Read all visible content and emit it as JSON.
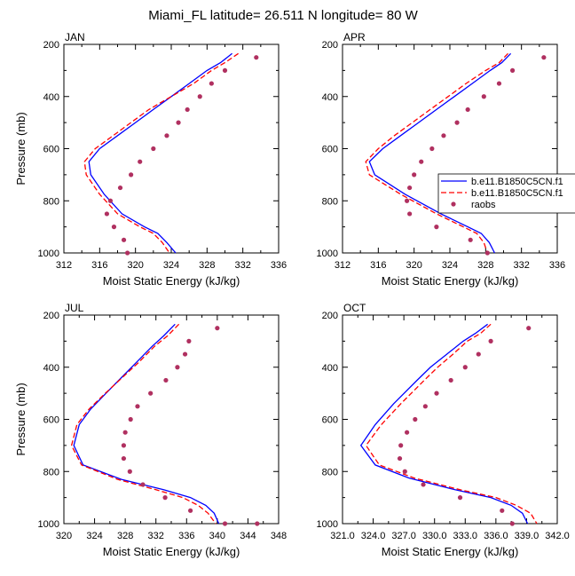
{
  "title": "Miami_FL  latitude= 26.511 N longitude= 80 W",
  "colors": {
    "model1": "#0000ff",
    "model2": "#ff0000",
    "raobs": "#b03060"
  },
  "legend": [
    "b.e11.B1850C5CN.f1",
    "b.e11.B1850C5CN.f1",
    "raobs"
  ],
  "chart_data": [
    {
      "type": "line",
      "panel": "JAN",
      "xlabel": "Moist Static Energy (kJ/kg)",
      "ylabel": "Pressure (mb)",
      "xlim": [
        312,
        336
      ],
      "ylim": [
        1000,
        200
      ],
      "y_axis": "inverted",
      "xticks": [
        "312",
        "316",
        "320",
        "324",
        "328",
        "332",
        "336"
      ],
      "yticks": [
        "200",
        "400",
        "600",
        "800",
        "1000"
      ],
      "series": [
        {
          "name": "b.e11.B1850C5CN.f1",
          "style": "solid",
          "x": [
            330.8,
            329.5,
            328,
            326,
            324,
            322,
            320,
            318,
            316,
            314.8,
            315,
            316.5,
            318.5,
            321,
            322.5,
            323.5,
            324.5
          ],
          "y": [
            235,
            270,
            300,
            350,
            400,
            450,
            500,
            550,
            600,
            650,
            700,
            775,
            850,
            900,
            925,
            960,
            1000
          ]
        },
        {
          "name": "b.e11.B1850C5CN.f1",
          "style": "dashed",
          "x": [
            331.5,
            330,
            328.5,
            326.5,
            324,
            321.5,
            319.5,
            317.5,
            315.5,
            314.3,
            314.5,
            316,
            318,
            320.5,
            322,
            323,
            323.8
          ],
          "y": [
            235,
            270,
            300,
            350,
            400,
            450,
            500,
            550,
            600,
            650,
            700,
            775,
            850,
            900,
            925,
            960,
            1000
          ]
        },
        {
          "name": "raobs",
          "style": "markers",
          "x": [
            333.5,
            330,
            328.5,
            327.2,
            325.8,
            324.8,
            323.5,
            322,
            320.5,
            319.5,
            318.3,
            317.2,
            316.8,
            317.6,
            318.7,
            319.1
          ],
          "y": [
            250,
            300,
            350,
            400,
            450,
            500,
            550,
            600,
            650,
            700,
            750,
            800,
            850,
            900,
            950,
            1000
          ]
        }
      ]
    },
    {
      "type": "line",
      "panel": "APR",
      "xlabel": "Moist Static Energy (kJ/kg)",
      "ylabel": "",
      "xlim": [
        312,
        336
      ],
      "ylim": [
        1000,
        200
      ],
      "y_axis": "inverted",
      "xticks": [
        "312",
        "316",
        "320",
        "324",
        "328",
        "332",
        "336"
      ],
      "yticks": [
        "200",
        "400",
        "600",
        "800",
        "1000"
      ],
      "series": [
        {
          "name": "b.e11.B1850C5CN.f1",
          "style": "solid",
          "x": [
            330.8,
            329.8,
            328.5,
            326.5,
            324.5,
            322.5,
            320.5,
            318.5,
            316.5,
            315,
            315.6,
            319,
            323,
            326,
            327.5,
            328.4,
            329
          ],
          "y": [
            235,
            270,
            300,
            350,
            400,
            450,
            500,
            550,
            600,
            650,
            700,
            775,
            850,
            900,
            925,
            960,
            1000
          ]
        },
        {
          "name": "b.e11.B1850C5CN.f1",
          "style": "dashed",
          "x": [
            330.5,
            329.5,
            328,
            325.8,
            323.8,
            321.8,
            319.8,
            317.8,
            316,
            314.6,
            315,
            318.5,
            322.5,
            325.5,
            327,
            327.8,
            328.2
          ],
          "y": [
            235,
            270,
            300,
            350,
            400,
            450,
            500,
            550,
            600,
            650,
            700,
            775,
            850,
            900,
            925,
            960,
            1000
          ]
        },
        {
          "name": "raobs",
          "style": "markers",
          "x": [
            334.5,
            331,
            329.5,
            327.8,
            326,
            324.8,
            323.3,
            322,
            320.8,
            320,
            319.5,
            319.2,
            319.5,
            322.5,
            326.3,
            328.2
          ],
          "y": [
            250,
            300,
            350,
            400,
            450,
            500,
            550,
            600,
            650,
            700,
            750,
            800,
            850,
            900,
            950,
            1000
          ]
        }
      ]
    },
    {
      "type": "line",
      "panel": "JUL",
      "xlabel": "Moist Static Energy (kJ/kg)",
      "ylabel": "Pressure (mb)",
      "xlim": [
        320,
        348
      ],
      "ylim": [
        1000,
        200
      ],
      "y_axis": "inverted",
      "xticks": [
        "320",
        "324",
        "328",
        "332",
        "336",
        "340",
        "344",
        "348"
      ],
      "yticks": [
        "200",
        "400",
        "600",
        "800",
        "1000"
      ],
      "series": [
        {
          "name": "b.e11.B1850C5CN.f1",
          "style": "solid",
          "x": [
            334.5,
            333,
            331.5,
            329.5,
            327.5,
            325.5,
            323.5,
            322,
            321.3,
            322.5,
            327.5,
            333,
            336.5,
            338.5,
            339.6,
            340.2
          ],
          "y": [
            235,
            280,
            320,
            380,
            440,
            500,
            560,
            620,
            700,
            775,
            830,
            870,
            900,
            930,
            960,
            1000
          ]
        },
        {
          "name": "b.e11.B1850C5CN.f1",
          "style": "dashed",
          "x": [
            335,
            333.5,
            331.8,
            329.8,
            327.6,
            325.4,
            323.3,
            321.7,
            321,
            322.3,
            327,
            332,
            335.5,
            337.5,
            338.8,
            339.8
          ],
          "y": [
            235,
            280,
            320,
            380,
            440,
            500,
            560,
            620,
            700,
            775,
            830,
            870,
            900,
            930,
            960,
            1000
          ]
        },
        {
          "name": "raobs",
          "style": "markers",
          "x": [
            340,
            336.3,
            335.8,
            334.8,
            333.3,
            331.3,
            329.6,
            328.7,
            328,
            327.8,
            327.8,
            328.6,
            330.3,
            333.2,
            336.5,
            341,
            345.2
          ],
          "y": [
            250,
            300,
            350,
            400,
            450,
            500,
            550,
            600,
            650,
            700,
            750,
            800,
            850,
            900,
            950,
            1000,
            1000
          ]
        }
      ]
    },
    {
      "type": "line",
      "panel": "OCT",
      "xlabel": "Moist Static Energy (kJ/kg)",
      "ylabel": "",
      "xlim": [
        321,
        342
      ],
      "ylim": [
        1000,
        200
      ],
      "y_axis": "inverted",
      "xticks": [
        "321.0",
        "324.0",
        "327.0",
        "330.0",
        "333.0",
        "336.0",
        "339.0",
        "342.0"
      ],
      "yticks": [
        "200",
        "400",
        "600",
        "800",
        "1000"
      ],
      "series": [
        {
          "name": "b.e11.B1850C5CN.f1",
          "style": "solid",
          "x": [
            335.2,
            334,
            332.8,
            331.2,
            329.6,
            328.3,
            326,
            324.2,
            322.8,
            324.2,
            327.5,
            332,
            335.5,
            337.5,
            338.6,
            339.1
          ],
          "y": [
            235,
            270,
            300,
            350,
            400,
            450,
            540,
            620,
            700,
            775,
            825,
            870,
            900,
            930,
            960,
            1000
          ]
        },
        {
          "name": "b.e11.B1850C5CN.f1",
          "style": "dashed",
          "x": [
            335.5,
            334.5,
            333.2,
            331.8,
            330.3,
            329,
            326.7,
            324.8,
            323.3,
            324.6,
            328,
            332.5,
            336,
            338,
            339.4,
            340
          ],
          "y": [
            235,
            270,
            300,
            350,
            400,
            450,
            540,
            620,
            700,
            775,
            825,
            870,
            900,
            930,
            960,
            1000
          ]
        },
        {
          "name": "raobs",
          "style": "markers",
          "x": [
            339.2,
            335.5,
            334.3,
            333,
            331.6,
            330.2,
            329.1,
            328.1,
            327.3,
            326.7,
            326.6,
            327.1,
            328.9,
            332.5,
            336.6,
            337.6
          ],
          "y": [
            250,
            300,
            350,
            400,
            450,
            500,
            550,
            600,
            650,
            700,
            750,
            800,
            850,
            900,
            950,
            1000
          ]
        }
      ]
    }
  ]
}
